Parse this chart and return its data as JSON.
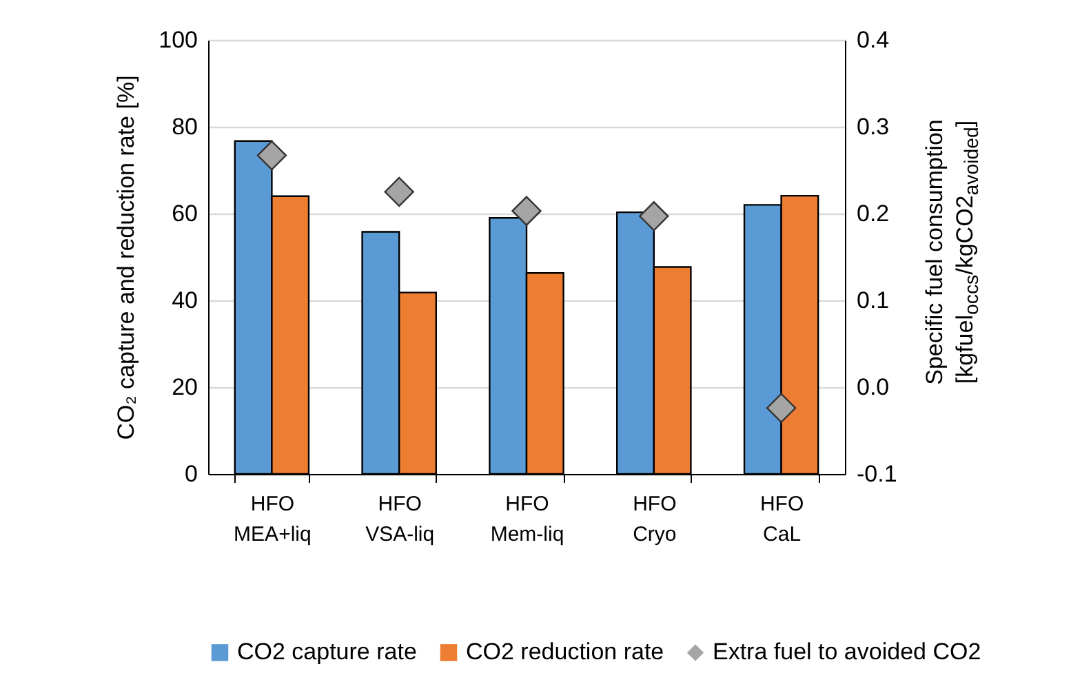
{
  "chart_data": {
    "type": "bar",
    "categories": [
      "HFO\nMEA+liq",
      "HFO\nVSA-liq",
      "HFO\nMem-liq",
      "HFO\nCryo",
      "HFO\nCaL"
    ],
    "series": [
      {
        "name": "CO2 capture rate",
        "color": "#5b9bd5",
        "values": [
          76.7,
          55.8,
          59.0,
          60.3,
          62.0
        ]
      },
      {
        "name": "CO2 reduction rate",
        "color": "#ed7d31",
        "values": [
          64.0,
          41.8,
          46.3,
          47.7,
          64.1
        ]
      },
      {
        "name": "Extra fuel to avoided CO2",
        "type": "scatter",
        "axis": "y2",
        "marker": "diamond",
        "color": "#a5a5a5",
        "values": [
          0.267,
          0.225,
          0.203,
          0.197,
          -0.024
        ]
      }
    ],
    "ylabel": "CO₂ capture and reduction rate [%]",
    "y2label": "Specific fuel consumption\n[kgfuel$_{occs}$/kgCO2$_{avoided}$]",
    "ylim": [
      0,
      100
    ],
    "yticks": [
      0,
      20,
      40,
      60,
      80,
      100
    ],
    "y2lim": [
      -0.1,
      0.4
    ],
    "y2ticks": [
      {
        "value": -0.1,
        "label": "-0.1"
      },
      {
        "value": 0,
        "label": "0.0"
      },
      {
        "value": 0.1,
        "label": "0.1"
      },
      {
        "value": 0.2,
        "label": "0.2"
      },
      {
        "value": 0.3,
        "label": "0.3"
      },
      {
        "value": 0.4,
        "label": "0.4"
      }
    ],
    "grid": "y",
    "legend": "bottom"
  }
}
